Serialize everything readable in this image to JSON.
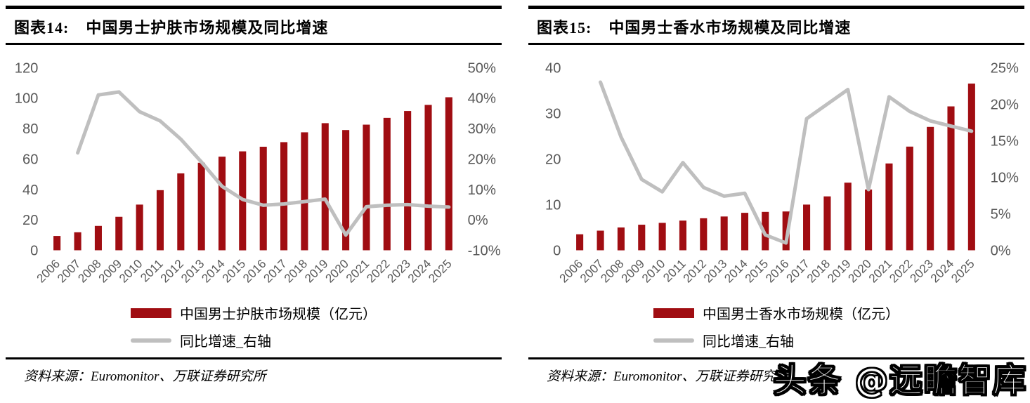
{
  "page": {
    "watermark": "头条 @远瞻智库"
  },
  "colors": {
    "bar": "#A00D12",
    "line": "#BFBFBF",
    "axis_text": "#595959",
    "divider": "#000000"
  },
  "figures": [
    {
      "label": "图表14:",
      "title": "中国男士护肤市场规模及同比增速",
      "legend_bar": "中国男士护肤市场规模（亿元）",
      "legend_line": "同比增速_右轴",
      "source": "资料来源：Euromonitor、万联证券研究所"
    },
    {
      "label": "图表15:",
      "title": "中国男士香水市场规模及同比增速",
      "legend_bar": "中国男士香水市场规模（亿元）",
      "legend_line": "同比增速_右轴",
      "source": "资料来源：Euromonitor、万联证券研究所"
    }
  ],
  "chart_data": [
    {
      "type": "bar+line",
      "title": "中国男士护肤市场规模及同比增速",
      "categories": [
        "2006",
        "2007",
        "2008",
        "2009",
        "2010",
        "2011",
        "2012",
        "2013",
        "2014",
        "2015",
        "2016",
        "2017",
        "2018",
        "2019",
        "2020",
        "2021",
        "2022",
        "2023",
        "2024",
        "2025"
      ],
      "series": [
        {
          "name": "中国男士护肤市场规模（亿元）",
          "type": "bar",
          "axis": "left",
          "values": [
            9.4,
            11.8,
            16,
            22,
            30,
            39.5,
            50.5,
            57.5,
            61.5,
            65,
            68,
            71,
            77.5,
            83.5,
            79,
            82.5,
            87,
            91.5,
            95.5,
            100.5
          ]
        },
        {
          "name": "同比增速_右轴",
          "type": "line",
          "axis": "right",
          "values": [
            null,
            22,
            41,
            42,
            35.5,
            32.5,
            26.5,
            19,
            11,
            6.7,
            4.8,
            5.2,
            6,
            6.8,
            -5,
            4.3,
            4.8,
            5,
            4.5,
            4.2
          ]
        }
      ],
      "left_axis": {
        "min": 0,
        "max": 120,
        "ticks": [
          0,
          20,
          40,
          60,
          80,
          100,
          120
        ],
        "suffix": ""
      },
      "right_axis": {
        "min": -10,
        "max": 50,
        "ticks": [
          -10,
          0,
          10,
          20,
          30,
          40,
          50
        ],
        "suffix": "%"
      },
      "grid": false,
      "legend_position": "bottom"
    },
    {
      "type": "bar+line",
      "title": "中国男士香水市场规模及同比增速",
      "categories": [
        "2006",
        "2007",
        "2008",
        "2009",
        "2010",
        "2011",
        "2012",
        "2013",
        "2014",
        "2015",
        "2016",
        "2017",
        "2018",
        "2019",
        "2020",
        "2021",
        "2022",
        "2023",
        "2024",
        "2025"
      ],
      "series": [
        {
          "name": "中国男士香水市场规模（亿元）",
          "type": "bar",
          "axis": "left",
          "values": [
            3.5,
            4.3,
            5.0,
            5.6,
            6.0,
            6.5,
            7.0,
            7.4,
            8.2,
            8.4,
            8.5,
            10,
            11.8,
            14.8,
            13.3,
            19,
            22.7,
            27,
            31.5,
            36.5
          ]
        },
        {
          "name": "同比增速_右轴",
          "type": "line",
          "axis": "right",
          "values": [
            null,
            23,
            15.5,
            9.7,
            8,
            12,
            8.6,
            7.4,
            7.8,
            2.1,
            1,
            18,
            20,
            22,
            8.3,
            21,
            19,
            17.7,
            17,
            16.3
          ]
        }
      ],
      "left_axis": {
        "min": 0,
        "max": 40,
        "ticks": [
          0,
          10,
          20,
          30,
          40
        ],
        "suffix": ""
      },
      "right_axis": {
        "min": 0,
        "max": 25,
        "ticks": [
          0,
          5,
          10,
          15,
          20,
          25
        ],
        "suffix": "%"
      },
      "grid": false,
      "legend_position": "bottom"
    }
  ]
}
